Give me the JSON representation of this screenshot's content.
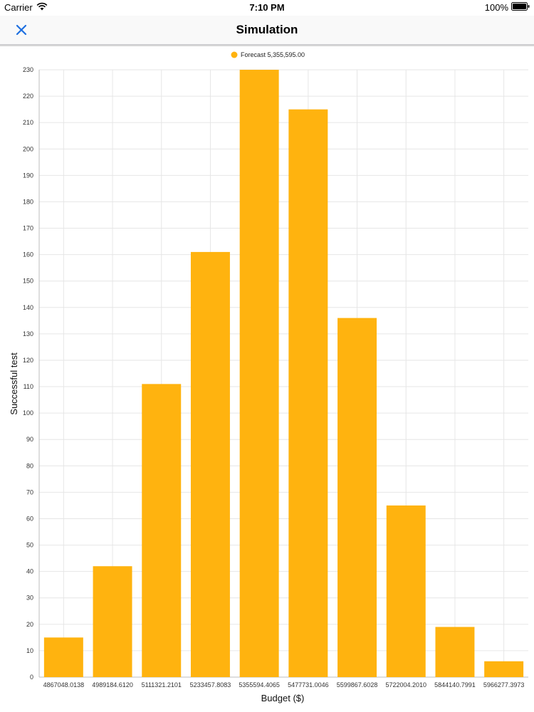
{
  "status_bar": {
    "carrier": "Carrier",
    "time": "7:10 PM",
    "battery": "100%"
  },
  "nav": {
    "title": "Simulation"
  },
  "colors": {
    "bar": "#FFB30F",
    "accent": "#1E6FE0",
    "grid": "#E6E6E6"
  },
  "chart_data": {
    "type": "bar",
    "categories": [
      "4867048.0138",
      "4989184.6120",
      "5111321.2101",
      "5233457.8083",
      "5355594.4065",
      "5477731.0046",
      "5599867.6028",
      "5722004.2010",
      "5844140.7991",
      "5966277.3973"
    ],
    "series": [
      {
        "name": "Forecast 5,355,595.00",
        "values": [
          15,
          42,
          111,
          161,
          230,
          215,
          136,
          65,
          19,
          6
        ]
      }
    ],
    "xlabel": "Budget ($)",
    "ylabel": "Successful test",
    "ylim": [
      0,
      230
    ],
    "yticks": [
      0,
      10,
      20,
      30,
      40,
      50,
      60,
      70,
      80,
      90,
      100,
      110,
      120,
      130,
      140,
      150,
      160,
      170,
      180,
      190,
      200,
      210,
      220,
      230
    ],
    "grid": true,
    "legend_position": "top-center"
  }
}
